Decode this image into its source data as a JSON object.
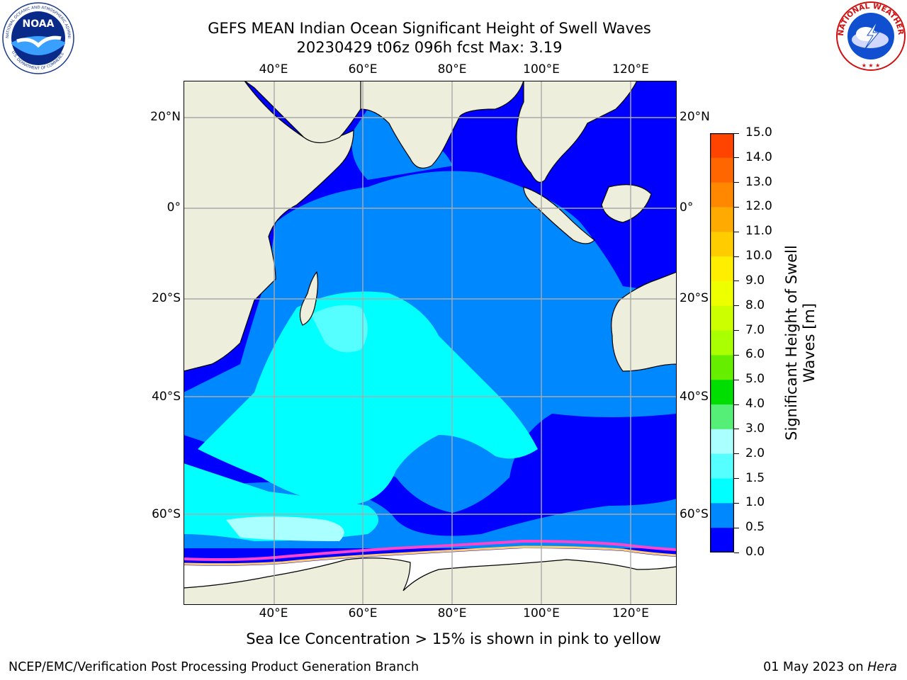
{
  "title": {
    "line1": "GEFS MEAN Indian Ocean Significant Height of Swell Waves",
    "line2": "20230429 t06z 096h fcst   Max: 3.19"
  },
  "axes": {
    "longitude_ticks": [
      "40°E",
      "60°E",
      "80°E",
      "100°E",
      "120°E"
    ],
    "latitude_ticks": [
      "20°N",
      "0°",
      "20°S",
      "40°S",
      "60°S"
    ]
  },
  "map": {
    "region": "Indian Ocean",
    "lon_range": [
      20,
      130
    ],
    "lat_range": [
      -75,
      28
    ],
    "gridlines": true,
    "variable": "Significant Height of Swell Waves",
    "max_value": 3.19
  },
  "colorbar": {
    "label": "Significant Height of Swell Waves [m]",
    "ticks": [
      "15.0",
      "14.0",
      "13.0",
      "12.0",
      "11.0",
      "10.0",
      "9.0",
      "8.0",
      "7.0",
      "6.0",
      "5.0",
      "4.0",
      "3.0",
      "2.0",
      "1.5",
      "1.0",
      "0.5",
      "0.0"
    ],
    "colors_top_to_bottom": [
      "#ff0000",
      "#ff2000",
      "#ff4400",
      "#ff6600",
      "#ff8800",
      "#ffaa00",
      "#ffcc00",
      "#ffee00",
      "#eeff00",
      "#ccff00",
      "#aaff00",
      "#66ee00",
      "#00dd00",
      "#55ee77",
      "#aaffff",
      "#55ffff",
      "#00ffff",
      "#0088ff",
      "#0000ff"
    ]
  },
  "colors": {
    "land": "#eeeedd",
    "ocean_low": "#0000ff",
    "ocean_mid": "#0088ff",
    "ocean_high": "#00ffff",
    "ice_edge": "#ff44cc"
  },
  "footer": {
    "sea_ice_note": "Sea Ice Concentration > 15% is shown in pink to yellow",
    "left": "NCEP/EMC/Verification Post Processing Product Generation Branch",
    "right_date": "01 May 2023 on ",
    "right_machine": "Hera"
  },
  "logos": {
    "left": "noaa-logo",
    "right": "nws-logo",
    "right_text": "NATIONAL WEATHER SERVICE"
  }
}
